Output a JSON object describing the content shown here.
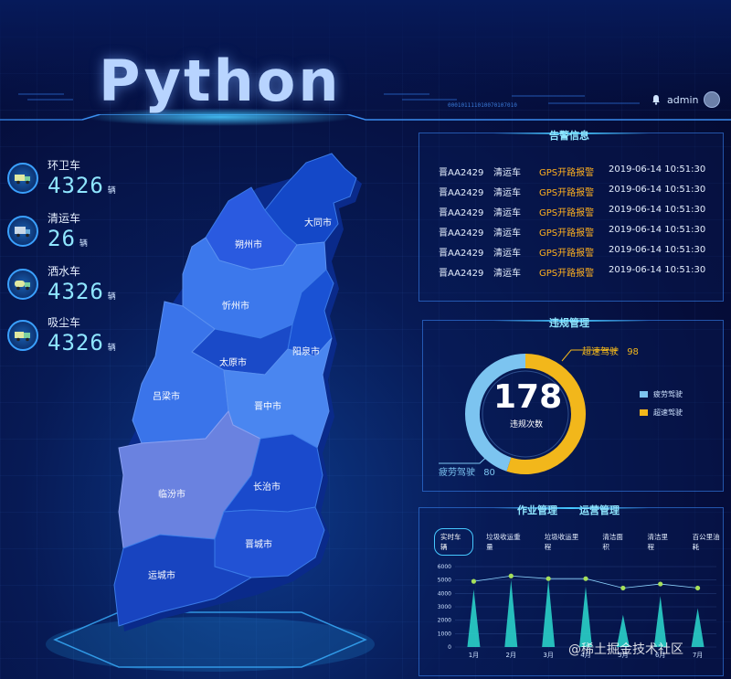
{
  "hero_title": "Python",
  "header": {
    "user": "admin",
    "bell_icon": "bell-icon",
    "avatar_color": "#6b7fa8"
  },
  "stats": [
    {
      "label": "环卫车",
      "value": "4326",
      "unit": "辆",
      "icon": "sanitation-truck-icon"
    },
    {
      "label": "清运车",
      "value": "26",
      "unit": "辆",
      "icon": "garbage-truck-icon"
    },
    {
      "label": "洒水车",
      "value": "4326",
      "unit": "辆",
      "icon": "sprinkler-truck-icon"
    },
    {
      "label": "吸尘车",
      "value": "4326",
      "unit": "辆",
      "icon": "vacuum-truck-icon"
    }
  ],
  "map": {
    "regions": [
      "大同市",
      "朔州市",
      "忻州市",
      "阳泉市",
      "太原市",
      "吕梁市",
      "晋中市",
      "临汾市",
      "长治市",
      "晋城市",
      "运城市"
    ]
  },
  "alarm_panel": {
    "title": "告警信息",
    "rows": [
      {
        "plate": "晋AA2429",
        "type": "清运车",
        "alert": "GPS开路报警",
        "time": "2019-06-14 10:51:30"
      },
      {
        "plate": "晋AA2429",
        "type": "清运车",
        "alert": "GPS开路报警",
        "time": "2019-06-14 10:51:30"
      },
      {
        "plate": "晋AA2429",
        "type": "清运车",
        "alert": "GPS开路报警",
        "time": "2019-06-14 10:51:30"
      },
      {
        "plate": "晋AA2429",
        "type": "清运车",
        "alert": "GPS开路报警",
        "time": "2019-06-14 10:51:30"
      },
      {
        "plate": "晋AA2429",
        "type": "清运车",
        "alert": "GPS开路报警",
        "time": "2019-06-14 10:51:30"
      },
      {
        "plate": "晋AA2429",
        "type": "清运车",
        "alert": "GPS开路报警",
        "time": "2019-06-14 10:51:30"
      }
    ]
  },
  "violation_panel": {
    "title": "违规管理",
    "total": "178",
    "total_label": "违规次数",
    "segments": [
      {
        "name": "疲劳驾驶",
        "value": 80,
        "color": "#7cc4f0"
      },
      {
        "name": "超速驾驶",
        "value": 98,
        "color": "#f2b71b"
      }
    ],
    "callout_fatigue": "疲劳驾驶",
    "callout_fatigue_value": "80",
    "callout_speed": "超速驾驶",
    "callout_speed_value": "98"
  },
  "ops_panel": {
    "title_left": "作业管理",
    "title_right": "运营管理",
    "tabs": [
      "实时车辆",
      "垃圾收运重量",
      "垃圾收运里程",
      "清洁面积",
      "清洁里程",
      "百公里油耗"
    ],
    "active_tab": 0
  },
  "chart_data": {
    "type": "bar",
    "categories": [
      "1月",
      "2月",
      "3月",
      "4月",
      "5月",
      "6月",
      "7月"
    ],
    "yticks": [
      0,
      1000,
      2000,
      3000,
      4000,
      5000,
      6000
    ],
    "ylim": [
      0,
      6000
    ],
    "series": [
      {
        "values": [
          4300,
          5000,
          5000,
          4500,
          2400,
          3800,
          2900
        ],
        "color": "#2ad0c8"
      },
      {
        "values": [
          4900,
          5300,
          5100,
          5100,
          4400,
          4700,
          4400
        ],
        "color": "#a6e05a"
      }
    ]
  },
  "watermark": "@稀土掘金技术社区"
}
